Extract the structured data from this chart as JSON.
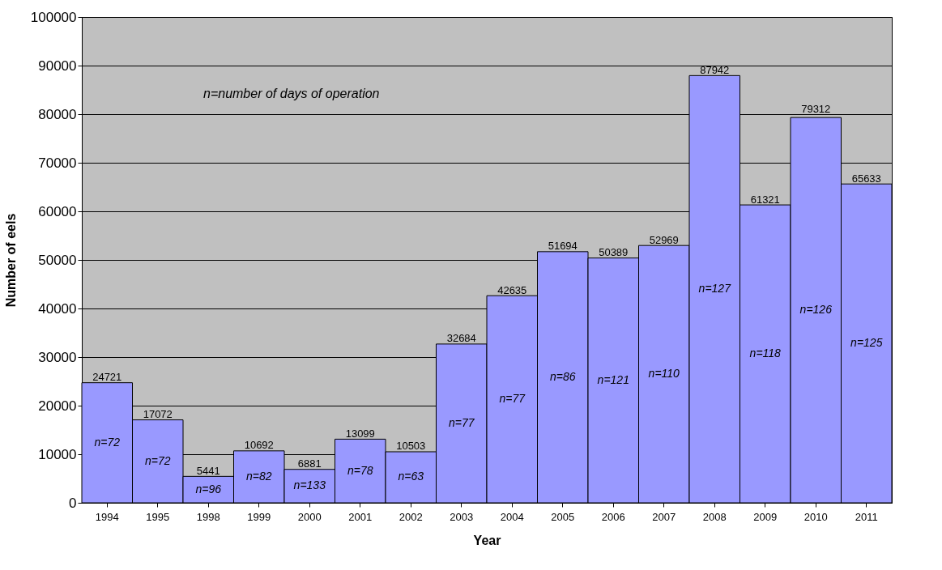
{
  "chart_data": {
    "type": "bar",
    "xlabel": "Year",
    "ylabel": "Number of eels",
    "categories": [
      "1994",
      "1995",
      "1998",
      "1999",
      "2000",
      "2001",
      "2002",
      "2003",
      "2004",
      "2005",
      "2006",
      "2007",
      "2008",
      "2009",
      "2010",
      "2011"
    ],
    "values": [
      24721,
      17072,
      5441,
      10692,
      6881,
      13099,
      10503,
      32684,
      42635,
      51694,
      50389,
      52969,
      87942,
      61321,
      79312,
      65633
    ],
    "color": "#9999ff",
    "ylim": [
      0,
      100000
    ],
    "yticks": [
      0,
      10000,
      20000,
      30000,
      40000,
      50000,
      60000,
      70000,
      80000,
      90000,
      100000
    ],
    "grid": "y",
    "data_labels": true,
    "annotations": [
      "n=number of days of operation",
      "n=72",
      "n=72",
      "n=96",
      "n=82",
      "n=133",
      "n=78",
      "n=63",
      "n=77",
      "n=77",
      "n=86",
      "n=121",
      "n=110",
      "n=127",
      "n=118",
      "n=126",
      "n=125"
    ]
  }
}
